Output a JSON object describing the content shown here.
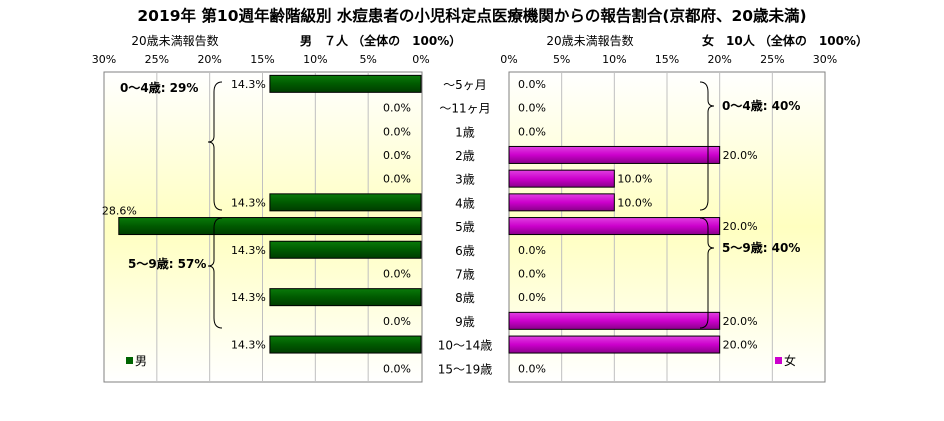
{
  "chart_data": {
    "type": "bar",
    "title": "2019年 第10週年齢階級別 水痘患者の小児科定点医療機関からの報告割合(京都府、20歳未満)",
    "categories": [
      "～5ヶ月",
      "～11ヶ月",
      "1歳",
      "2歳",
      "3歳",
      "4歳",
      "5歳",
      "6歳",
      "7歳",
      "8歳",
      "9歳",
      "10～14歳",
      "15～19歳"
    ],
    "xlim": [
      0,
      30
    ],
    "ticks": [
      0,
      5,
      10,
      15,
      20,
      25,
      30
    ],
    "tick_suffix": "%",
    "series": [
      {
        "name": "男",
        "header": "男　７人 （全体の　100%）",
        "axis_title": "20歳未満報告数",
        "color": "#006400",
        "values": [
          14.3,
          0.0,
          0.0,
          0.0,
          0.0,
          14.3,
          28.6,
          14.3,
          0.0,
          14.3,
          0.0,
          14.3,
          0.0
        ],
        "value_labels": [
          "14.3%",
          "0.0%",
          "0.0%",
          "0.0%",
          "0.0%",
          "14.3%",
          "28.6%",
          "14.3%",
          "0.0%",
          "14.3%",
          "0.0%",
          "14.3%",
          "0.0%"
        ],
        "annotations": [
          "0～4歳: 29%",
          "5～9歳: 57%"
        ]
      },
      {
        "name": "女",
        "header": "女　10人 （全体の　100%）",
        "axis_title": "20歳未満報告数",
        "color": "#cc00cc",
        "values": [
          0.0,
          0.0,
          0.0,
          20.0,
          10.0,
          10.0,
          20.0,
          0.0,
          0.0,
          0.0,
          20.0,
          20.0,
          0.0
        ],
        "value_labels": [
          "0.0%",
          "0.0%",
          "0.0%",
          "20.0%",
          "10.0%",
          "10.0%",
          "20.0%",
          "0.0%",
          "0.0%",
          "0.0%",
          "20.0%",
          "20.0%",
          "0.0%"
        ],
        "annotations": [
          "0～4歳: 40%",
          "5～9歳: 40%"
        ]
      }
    ],
    "grid": true,
    "legend": [
      "男",
      "女"
    ]
  },
  "colors": {
    "male_bar": "#006400",
    "female_bar": "#cc00cc",
    "plot_center": "#ffffc8",
    "plot_edge": "#ffffff"
  }
}
